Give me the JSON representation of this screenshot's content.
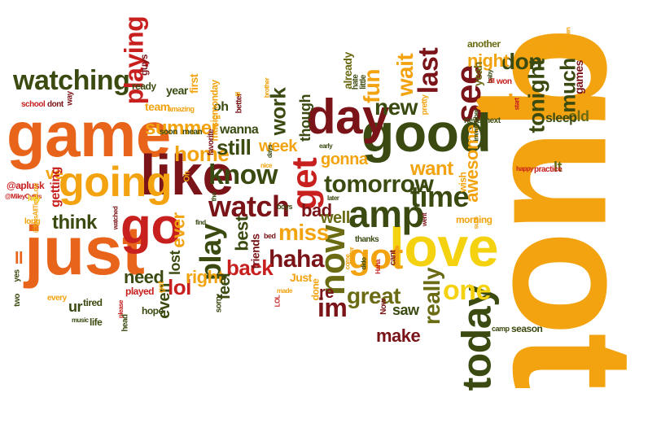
{
  "palette": {
    "orange": "#e8641b",
    "amber": "#f2a30f",
    "yellow": "#f5d20f",
    "red": "#c7201f",
    "maroon": "#7a1418",
    "green": "#3a4a10",
    "olive": "#6b6b14"
  },
  "words": [
    {
      "text": "quot",
      "color": "amber",
      "big": true
    },
    {
      "text": "game",
      "color": "orange"
    },
    {
      "text": "just",
      "color": "orange"
    },
    {
      "text": "love",
      "color": "yellow"
    },
    {
      "text": "like",
      "color": "maroon"
    },
    {
      "text": "good",
      "color": "green"
    },
    {
      "text": "day",
      "color": "maroon"
    },
    {
      "text": "go",
      "color": "red"
    },
    {
      "text": "going",
      "color": "amber"
    },
    {
      "text": "today",
      "color": "green"
    },
    {
      "text": "get",
      "color": "red"
    },
    {
      "text": "amp",
      "color": "green"
    },
    {
      "text": "got",
      "color": "amber"
    },
    {
      "text": "now",
      "color": "olive"
    },
    {
      "text": "see",
      "color": "maroon"
    },
    {
      "text": "watching",
      "color": "green"
    },
    {
      "text": "playing",
      "color": "red"
    },
    {
      "text": "watch",
      "color": "maroon"
    },
    {
      "text": "know",
      "color": "green"
    },
    {
      "text": "time",
      "color": "green"
    },
    {
      "text": "tomorrow",
      "color": "green"
    },
    {
      "text": "play",
      "color": "green"
    },
    {
      "text": "haha",
      "color": "maroon"
    },
    {
      "text": "im",
      "color": "maroon"
    },
    {
      "text": "one",
      "color": "yellow"
    },
    {
      "text": "new",
      "color": "green"
    },
    {
      "text": "fun",
      "color": "amber"
    },
    {
      "text": "sad",
      "color": "amber"
    },
    {
      "text": "don",
      "color": "green"
    },
    {
      "text": "night",
      "color": "amber"
    },
    {
      "text": "high",
      "color": "amber"
    },
    {
      "text": "tonight",
      "color": "green"
    },
    {
      "text": "much",
      "color": "green"
    },
    {
      "text": "last",
      "color": "maroon"
    },
    {
      "text": "wait",
      "color": "amber"
    },
    {
      "text": "really",
      "color": "olive"
    },
    {
      "text": "great",
      "color": "olive"
    },
    {
      "text": "miss",
      "color": "amber"
    },
    {
      "text": "back",
      "color": "red"
    },
    {
      "text": "lol",
      "color": "red"
    },
    {
      "text": "home",
      "color": "amber"
    },
    {
      "text": "summer",
      "color": "amber"
    },
    {
      "text": "still",
      "color": "green"
    },
    {
      "text": "think",
      "color": "green"
    },
    {
      "text": "want",
      "color": "amber"
    },
    {
      "text": "week",
      "color": "amber"
    },
    {
      "text": "work",
      "color": "green"
    },
    {
      "text": "right",
      "color": "amber"
    },
    {
      "text": "need",
      "color": "green"
    },
    {
      "text": "make",
      "color": "maroon"
    },
    {
      "text": "ever",
      "color": "amber"
    },
    {
      "text": "best",
      "color": "green"
    },
    {
      "text": "bad",
      "color": "maroon"
    },
    {
      "text": "well",
      "color": "olive"
    },
    {
      "text": "gonna",
      "color": "amber"
    },
    {
      "text": "awesome",
      "color": "amber"
    },
    {
      "text": "feel",
      "color": "green"
    },
    {
      "text": "lost",
      "color": "green"
    },
    {
      "text": "even",
      "color": "green"
    },
    {
      "text": "re",
      "color": "maroon"
    },
    {
      "text": "It",
      "color": "olive"
    },
    {
      "text": "ve",
      "color": "amber"
    },
    {
      "text": "ll",
      "color": "orange"
    },
    {
      "text": "old",
      "color": "olive"
    },
    {
      "text": "sleep",
      "color": "green"
    },
    {
      "text": "games",
      "color": "maroon"
    },
    {
      "text": "saw",
      "color": "green"
    },
    {
      "text": "ur",
      "color": "green"
    },
    {
      "text": "oh",
      "color": "green"
    },
    {
      "text": "wanna",
      "color": "green"
    },
    {
      "text": "friends",
      "color": "maroon"
    },
    {
      "text": "getting",
      "color": "red"
    },
    {
      "text": "musicmonday",
      "color": "amber"
    },
    {
      "text": "year",
      "color": "green"
    },
    {
      "text": "first",
      "color": "amber"
    },
    {
      "text": "team",
      "color": "amber"
    },
    {
      "text": "ready",
      "color": "green"
    },
    {
      "text": "guys",
      "color": "maroon"
    },
    {
      "text": "though",
      "color": "green"
    },
    {
      "text": "already",
      "color": "olive"
    },
    {
      "text": "yeah",
      "color": "olive"
    },
    {
      "text": "another",
      "color": "olive"
    },
    {
      "text": "next",
      "color": "green"
    },
    {
      "text": "never",
      "color": "green"
    },
    {
      "text": "wish",
      "color": "amber"
    },
    {
      "text": "morning",
      "color": "amber"
    },
    {
      "text": "thanks",
      "color": "green"
    },
    {
      "text": "Now",
      "color": "maroon"
    },
    {
      "text": "Just",
      "color": "amber"
    },
    {
      "text": "done",
      "color": "amber"
    },
    {
      "text": "season",
      "color": "green"
    },
    {
      "text": "camp",
      "color": "green"
    },
    {
      "text": "practice",
      "color": "red"
    },
    {
      "text": "tired",
      "color": "green"
    },
    {
      "text": "hope",
      "color": "green"
    },
    {
      "text": "played",
      "color": "red"
    },
    {
      "text": "life",
      "color": "green"
    },
    {
      "text": "sorry",
      "color": "green"
    },
    {
      "text": "school",
      "color": "red"
    },
    {
      "text": "dont",
      "color": "maroon"
    },
    {
      "text": "way",
      "color": "maroon"
    },
    {
      "text": "@aplusk",
      "color": "red"
    },
    {
      "text": "long",
      "color": "amber"
    },
    {
      "text": "yes",
      "color": "green"
    },
    {
      "text": "two",
      "color": "green"
    },
    {
      "text": "every",
      "color": "amber"
    },
    {
      "text": "music",
      "color": "green"
    },
    {
      "text": "please",
      "color": "red"
    },
    {
      "text": "head",
      "color": "green"
    },
    {
      "text": "watched",
      "color": "maroon"
    },
    {
      "text": "@MileyCyrus",
      "color": "red"
    },
    {
      "text": "@MesAllTimeLow",
      "color": "amber"
    },
    {
      "text": "hey",
      "color": "yellow"
    },
    {
      "text": "got",
      "color": "amber",
      "small": true
    },
    {
      "text": "made",
      "color": "amber"
    },
    {
      "text": "LOL",
      "color": "red"
    },
    {
      "text": "come",
      "color": "amber"
    },
    {
      "text": "twitter",
      "color": "amber"
    },
    {
      "text": "dido",
      "color": "green"
    },
    {
      "text": "Haha",
      "color": "red"
    },
    {
      "text": "cant",
      "color": "maroon"
    },
    {
      "text": "went",
      "color": "maroon"
    },
    {
      "text": "soon",
      "color": "green"
    },
    {
      "text": "mean",
      "color": "green"
    },
    {
      "text": "amazing",
      "color": "amber"
    },
    {
      "text": "better",
      "color": "maroon"
    },
    {
      "text": "ha",
      "color": "amber"
    },
    {
      "text": "brother",
      "color": "amber"
    },
    {
      "text": "favorite",
      "color": "maroon"
    },
    {
      "text": "Oh",
      "color": "amber"
    },
    {
      "text": "nice",
      "color": "amber"
    },
    {
      "text": "days",
      "color": "green"
    },
    {
      "text": "early",
      "color": "green"
    },
    {
      "text": "find",
      "color": "green"
    },
    {
      "text": "tho",
      "color": "green"
    },
    {
      "text": "boys",
      "color": "green"
    },
    {
      "text": "bed",
      "color": "maroon"
    },
    {
      "text": "later",
      "color": "green"
    },
    {
      "text": "hate",
      "color": "green"
    },
    {
      "text": "little",
      "color": "green"
    },
    {
      "text": "pretty",
      "color": "amber"
    },
    {
      "text": "irremember",
      "color": "green"
    },
    {
      "text": "baby",
      "color": "green"
    },
    {
      "text": "till",
      "color": "red"
    },
    {
      "text": "won",
      "color": "red"
    },
    {
      "text": "start",
      "color": "red"
    },
    {
      "text": "happy",
      "color": "red"
    },
    {
      "text": "haven",
      "color": "amber"
    },
    {
      "text": "til",
      "color": "amber"
    },
    {
      "text": "sure",
      "color": "amber"
    }
  ]
}
